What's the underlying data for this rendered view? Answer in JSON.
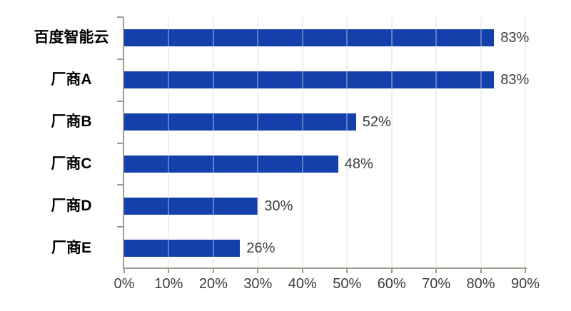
{
  "chart_data": {
    "type": "bar",
    "orientation": "horizontal",
    "title": "",
    "categories": [
      "百度智能云",
      "厂商A",
      "厂商B",
      "厂商C",
      "厂商D",
      "厂商E"
    ],
    "series": [
      {
        "name": "share",
        "values": [
          83,
          83,
          52,
          48,
          30,
          26
        ]
      }
    ],
    "value_labels": [
      "83%",
      "83%",
      "52%",
      "48%",
      "30%",
      "26%"
    ],
    "x_tick_labels": [
      "0%",
      "10%",
      "20%",
      "30%",
      "40%",
      "50%",
      "60%",
      "70%",
      "80%",
      "90%"
    ],
    "x_tick_values": [
      0,
      10,
      20,
      30,
      40,
      50,
      60,
      70,
      80,
      90
    ],
    "xlim": [
      0,
      90
    ],
    "grid": true,
    "legend": false
  },
  "style": {
    "bar_color": "#1440ab",
    "axis_color": "#a39a90",
    "grid_color": "#e9e7e3",
    "category_label_color": "#000000",
    "value_label_color": "#3d3d3d",
    "background_color": "#ffffff"
  }
}
